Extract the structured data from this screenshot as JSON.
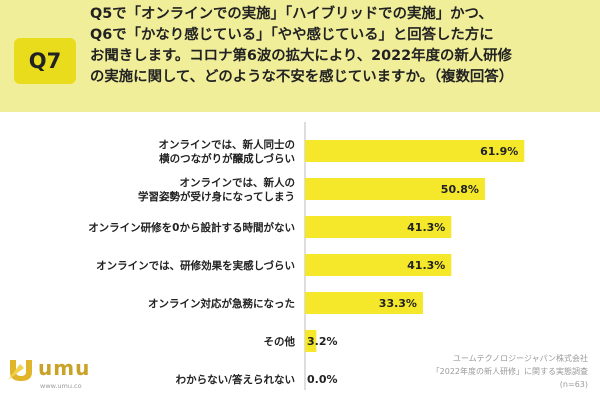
{
  "header": {
    "badge": "Q7",
    "lines": [
      "Q5で「オンラインでの実施」「ハイブリッドでの実施」かつ、",
      "Q6で「かなり感じている」「やや感じている」と回答した方に",
      "お聞きします。コロナ第6波の拡大により、2022年度の新人研修",
      "の実施に関して、どのような不安を感じていますか。（複数回答）"
    ]
  },
  "chart_data": {
    "type": "bar",
    "orientation": "horizontal",
    "categories": [
      [
        "オンラインでは、新人同士の",
        "横のつながりが醸成しづらい"
      ],
      [
        "オンラインでは、新人の",
        "学習姿勢が受け身になってしまう"
      ],
      [
        "オンライン研修を0から設計する時間がない"
      ],
      [
        "オンラインでは、研修効果を実感しづらい"
      ],
      [
        "オンライン対応が急務になった"
      ],
      [
        "その他"
      ],
      [
        "わからない/答えられない"
      ]
    ],
    "values": [
      61.9,
      50.8,
      41.3,
      41.3,
      33.3,
      3.2,
      0.0
    ],
    "value_labels": [
      "61.9%",
      "50.8%",
      "41.3%",
      "41.3%",
      "33.3%",
      "3.2%",
      "0.0%"
    ],
    "xlim": [
      0,
      70
    ],
    "bar_color": "#f5e82a"
  },
  "logo": {
    "text": "umu",
    "url": "www.umu.co"
  },
  "source": {
    "lines": [
      "ユームテクノロジージャパン株式会社",
      "「2022年度の新人研修」に関する実態調査",
      "(n=63)"
    ]
  }
}
